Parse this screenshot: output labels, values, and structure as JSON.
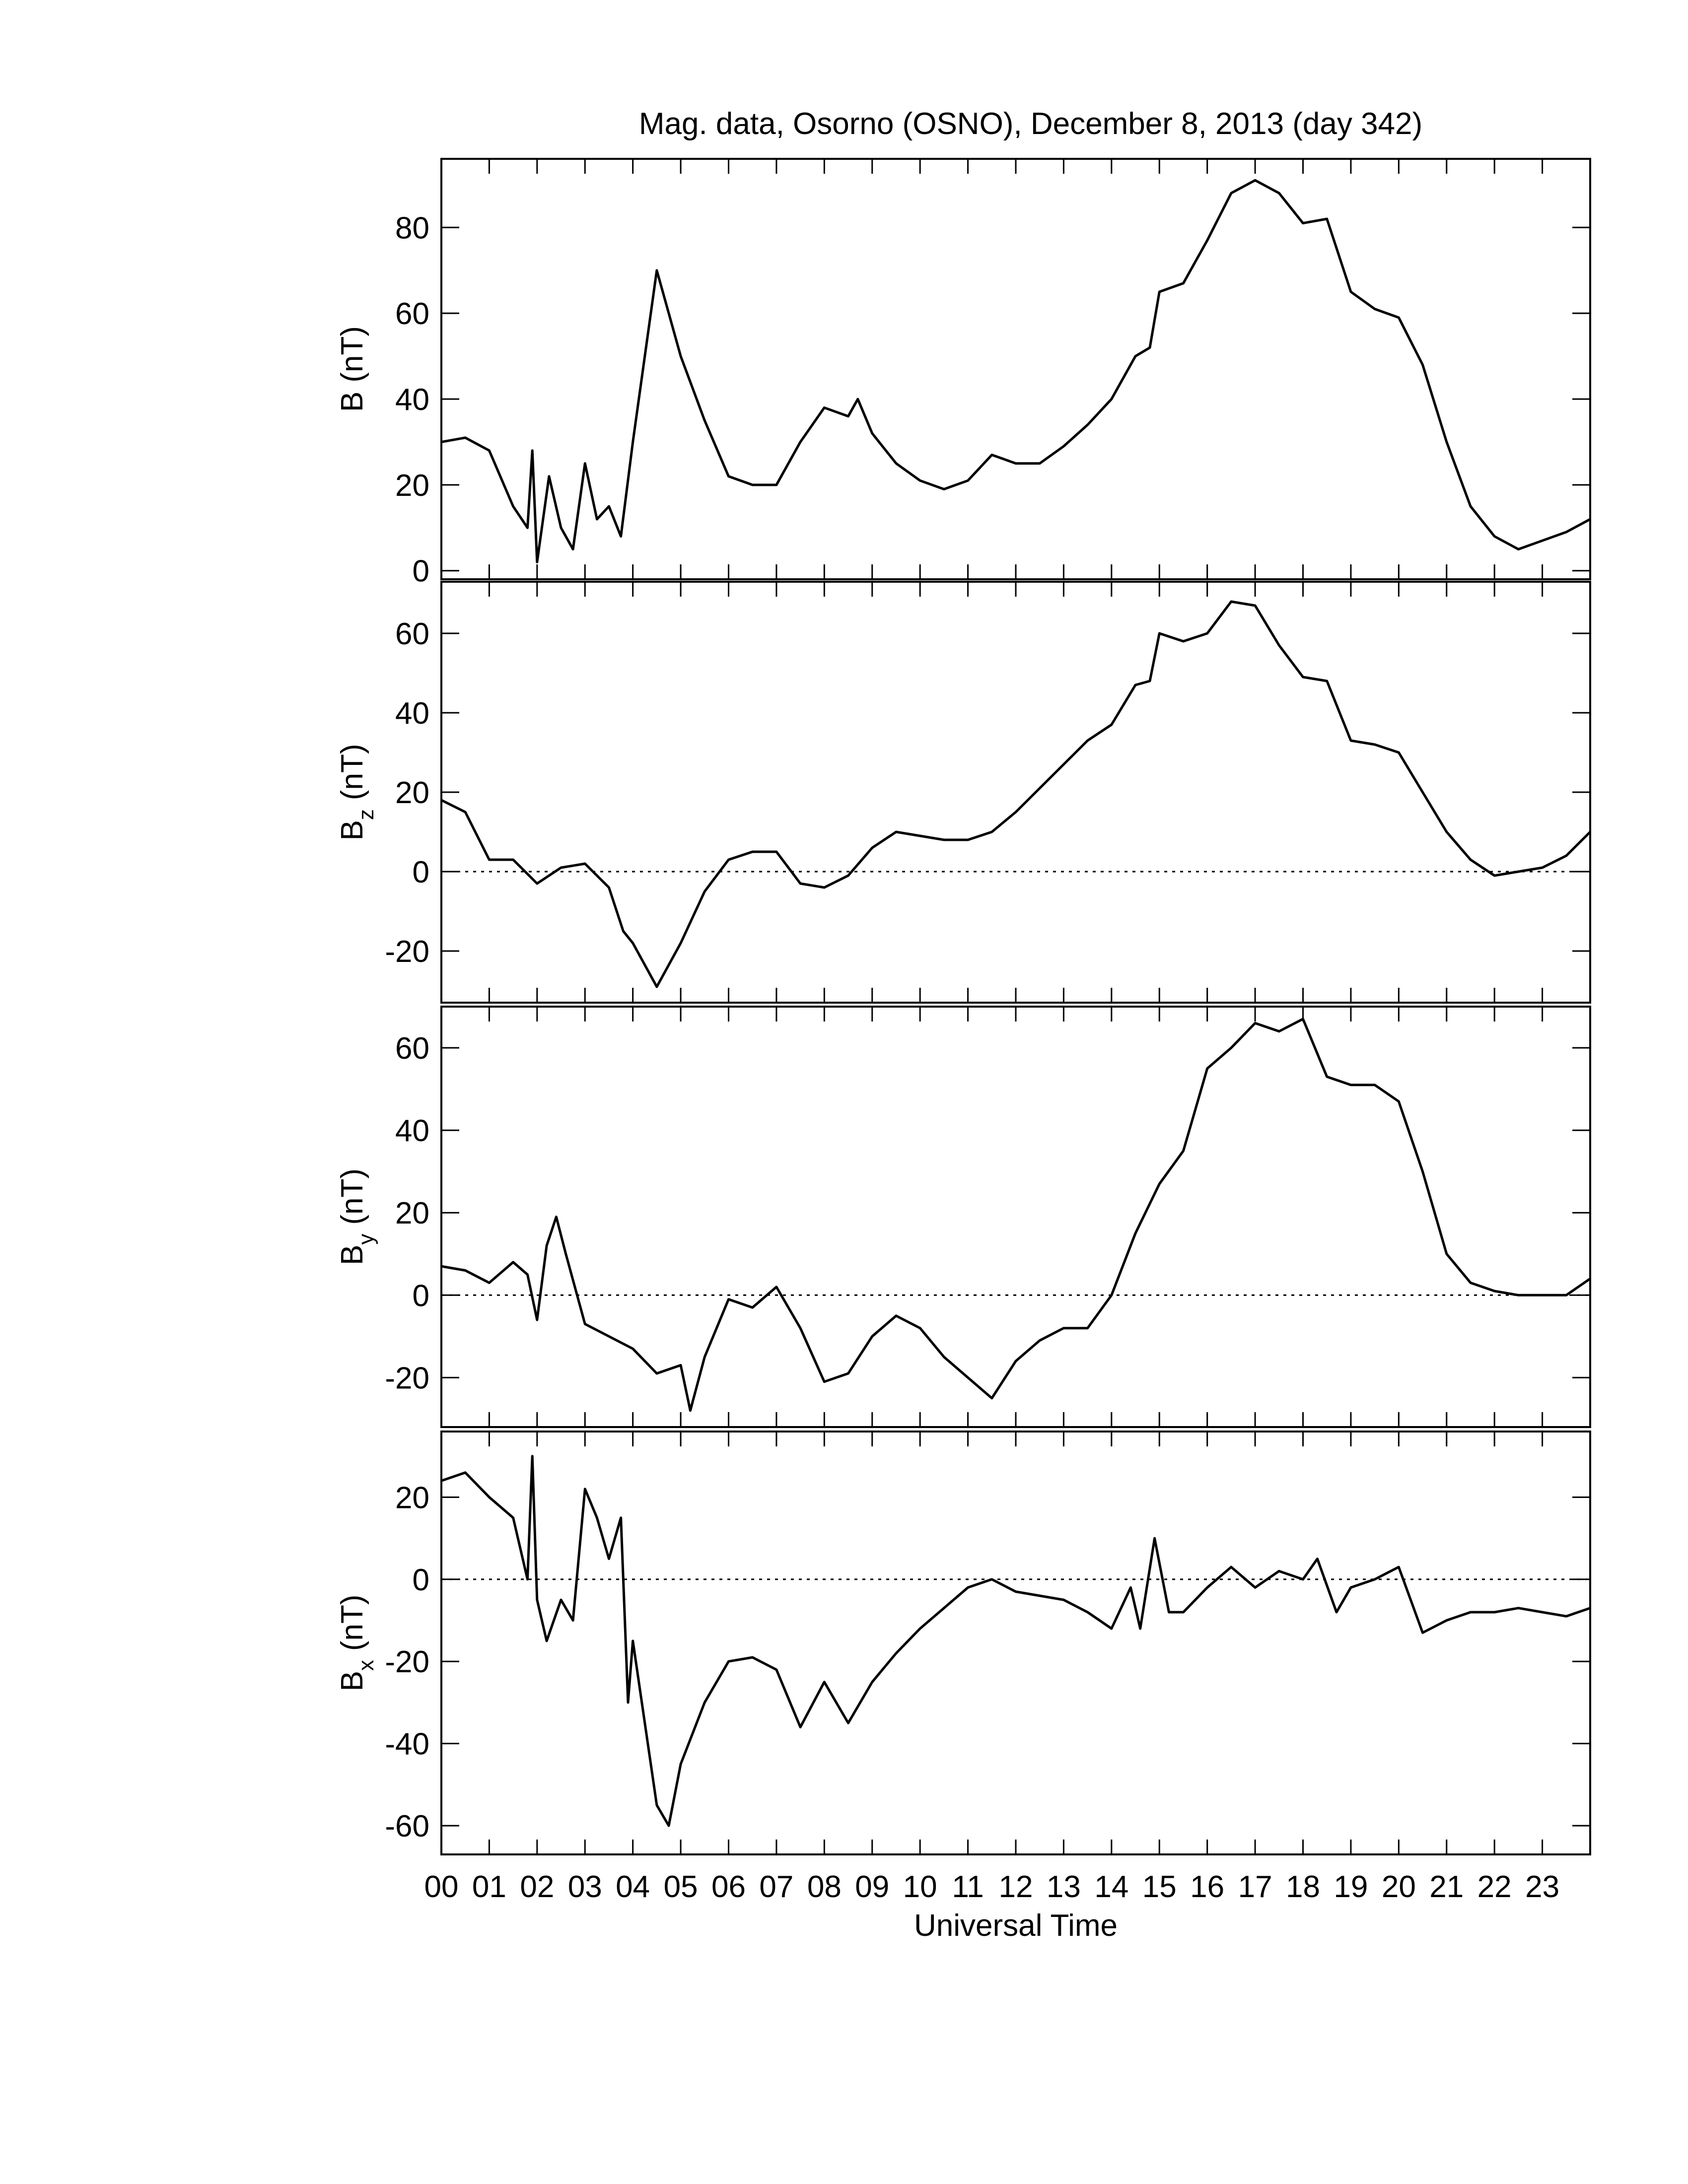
{
  "chart_data": [
    {
      "type": "line",
      "title": "Mag. data, Osorno (OSNO), December 8, 2013 (day 342)",
      "ylabel": "B",
      "ylabel_unit": "(nT)",
      "color": "#000000",
      "xlim": [
        0,
        24
      ],
      "ylim": [
        -2,
        96
      ],
      "yticks": [
        0,
        20,
        40,
        60,
        80
      ],
      "x": [
        0,
        0.5,
        1,
        1.5,
        1.8,
        1.9,
        2.0,
        2.25,
        2.5,
        2.75,
        3,
        3.25,
        3.5,
        3.75,
        4,
        4.5,
        4.75,
        5,
        5.5,
        6,
        6.5,
        7,
        7.5,
        8,
        8.5,
        8.7,
        9,
        9.5,
        10,
        10.5,
        11,
        11.5,
        12,
        12.5,
        13,
        13.5,
        14,
        14.5,
        14.8,
        15,
        15.5,
        16,
        16.5,
        17,
        17.5,
        18,
        18.5,
        19,
        19.5,
        20,
        20.5,
        21,
        21.5,
        22,
        22.5,
        23,
        23.5,
        24
      ],
      "values": [
        30,
        31,
        28,
        15,
        10,
        28,
        2,
        22,
        10,
        5,
        25,
        12,
        15,
        8,
        30,
        70,
        60,
        50,
        35,
        22,
        20,
        20,
        30,
        38,
        36,
        40,
        32,
        25,
        21,
        19,
        21,
        27,
        25,
        25,
        29,
        34,
        40,
        50,
        52,
        65,
        67,
        77,
        88,
        91,
        88,
        81,
        82,
        65,
        61,
        59,
        48,
        30,
        15,
        8,
        5,
        7,
        9,
        12
      ]
    },
    {
      "type": "line",
      "ylabel": "B",
      "ylabel_sub": "z",
      "ylabel_unit": "(nT)",
      "color": "#000000",
      "reference_line": 0,
      "xlim": [
        0,
        24
      ],
      "ylim": [
        -33,
        73
      ],
      "yticks": [
        -20,
        0,
        20,
        40,
        60
      ],
      "x": [
        0,
        0.5,
        1,
        1.5,
        2,
        2.5,
        3,
        3.5,
        3.8,
        4,
        4.5,
        5,
        5.5,
        6,
        6.5,
        7,
        7.5,
        8,
        8.5,
        9,
        9.5,
        10,
        10.5,
        11,
        11.5,
        12,
        12.5,
        13,
        13.5,
        14,
        14.5,
        14.8,
        15,
        15.5,
        16,
        16.5,
        17,
        17.5,
        18,
        18.5,
        19,
        19.5,
        20,
        20.5,
        21,
        21.5,
        22,
        22.5,
        23,
        23.5,
        24
      ],
      "values": [
        18,
        15,
        3,
        3,
        -3,
        1,
        2,
        -4,
        -15,
        -18,
        -29,
        -18,
        -5,
        3,
        5,
        5,
        -3,
        -4,
        -1,
        6,
        10,
        9,
        8,
        8,
        10,
        15,
        21,
        27,
        33,
        37,
        47,
        48,
        60,
        58,
        60,
        68,
        67,
        57,
        49,
        48,
        33,
        32,
        30,
        20,
        10,
        3,
        -1,
        0,
        1,
        4,
        10
      ]
    },
    {
      "type": "line",
      "ylabel": "B",
      "ylabel_sub": "y",
      "ylabel_unit": "(nT)",
      "color": "#000000",
      "reference_line": 0,
      "xlim": [
        0,
        24
      ],
      "ylim": [
        -32,
        70
      ],
      "yticks": [
        -20,
        0,
        20,
        40,
        60
      ],
      "x": [
        0,
        0.5,
        1,
        1.5,
        1.8,
        2,
        2.2,
        2.4,
        2.6,
        3,
        3.5,
        4,
        4.5,
        5,
        5.2,
        5.5,
        6,
        6.5,
        7,
        7.5,
        8,
        8.5,
        9,
        9.5,
        10,
        10.5,
        11,
        11.5,
        12,
        12.5,
        13,
        13.5,
        14,
        14.5,
        15,
        15.5,
        16,
        16.5,
        17,
        17.5,
        18,
        18.5,
        19,
        19.5,
        20,
        20.5,
        21,
        21.5,
        22,
        22.5,
        23,
        23.5,
        24
      ],
      "values": [
        7,
        6,
        3,
        8,
        5,
        -6,
        12,
        19,
        10,
        -7,
        -10,
        -13,
        -19,
        -17,
        -28,
        -15,
        -1,
        -3,
        2,
        -8,
        -21,
        -19,
        -10,
        -5,
        -8,
        -15,
        -20,
        -25,
        -16,
        -11,
        -8,
        -8,
        0,
        15,
        27,
        35,
        55,
        60,
        66,
        64,
        67,
        53,
        51,
        51,
        47,
        30,
        10,
        3,
        1,
        0,
        0,
        0,
        4
      ]
    },
    {
      "type": "line",
      "ylabel": "B",
      "ylabel_sub": "x",
      "ylabel_unit": "(nT)",
      "xlabel": "Universal Time",
      "color": "#000000",
      "reference_line": 0,
      "xlim": [
        0,
        24
      ],
      "ylim": [
        -67,
        36
      ],
      "yticks": [
        -60,
        -40,
        -20,
        0,
        20
      ],
      "xticks": [
        {
          "value": 0,
          "label": "00"
        },
        {
          "value": 1,
          "label": "01"
        },
        {
          "value": 2,
          "label": "02"
        },
        {
          "value": 3,
          "label": "03"
        },
        {
          "value": 4,
          "label": "04"
        },
        {
          "value": 5,
          "label": "05"
        },
        {
          "value": 6,
          "label": "06"
        },
        {
          "value": 7,
          "label": "07"
        },
        {
          "value": 8,
          "label": "08"
        },
        {
          "value": 9,
          "label": "09"
        },
        {
          "value": 10,
          "label": "10"
        },
        {
          "value": 11,
          "label": "11"
        },
        {
          "value": 12,
          "label": "12"
        },
        {
          "value": 13,
          "label": "13"
        },
        {
          "value": 14,
          "label": "14"
        },
        {
          "value": 15,
          "label": "15"
        },
        {
          "value": 16,
          "label": "16"
        },
        {
          "value": 17,
          "label": "17"
        },
        {
          "value": 18,
          "label": "18"
        },
        {
          "value": 19,
          "label": "19"
        },
        {
          "value": 20,
          "label": "20"
        },
        {
          "value": 21,
          "label": "21"
        },
        {
          "value": 22,
          "label": "22"
        },
        {
          "value": 23,
          "label": "23"
        }
      ],
      "x": [
        0,
        0.5,
        1,
        1.5,
        1.8,
        1.9,
        2,
        2.2,
        2.5,
        2.75,
        3,
        3.25,
        3.5,
        3.75,
        3.9,
        4,
        4.5,
        4.75,
        5,
        5.5,
        6,
        6.5,
        7,
        7.5,
        8,
        8.5,
        9,
        9.5,
        10,
        10.5,
        11,
        11.5,
        12,
        12.5,
        13,
        13.5,
        14,
        14.4,
        14.6,
        14.9,
        15.2,
        15.5,
        16,
        16.5,
        17,
        17.5,
        18,
        18.3,
        18.7,
        19,
        19.5,
        20,
        20.5,
        21,
        21.5,
        22,
        22.5,
        23,
        23.5,
        24
      ],
      "values": [
        24,
        26,
        20,
        15,
        0,
        30,
        -5,
        -15,
        -5,
        -10,
        22,
        15,
        5,
        15,
        -30,
        -15,
        -55,
        -60,
        -45,
        -30,
        -20,
        -19,
        -22,
        -36,
        -25,
        -35,
        -25,
        -18,
        -12,
        -7,
        -2,
        0,
        -3,
        -4,
        -5,
        -8,
        -12,
        -2,
        -12,
        10,
        -8,
        -8,
        -2,
        3,
        -2,
        2,
        0,
        5,
        -8,
        -2,
        0,
        3,
        -13,
        -10,
        -8,
        -8,
        -7,
        -8,
        -9,
        -7
      ]
    }
  ]
}
